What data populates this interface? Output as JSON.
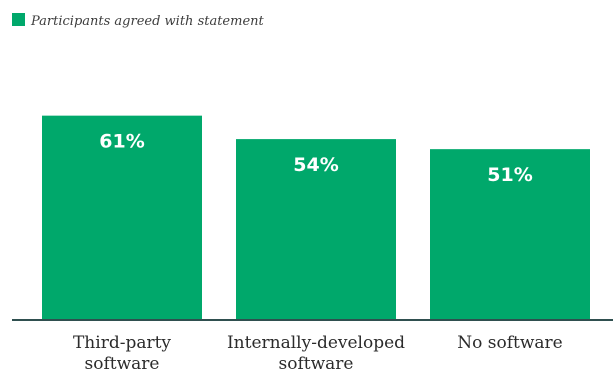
{
  "chart_data": {
    "type": "bar",
    "categories": [
      [
        "Third-party",
        "software"
      ],
      [
        "Internally-developed",
        "software"
      ],
      [
        "No software"
      ]
    ],
    "series": [
      {
        "name": "Participants agreed with statement",
        "values": [
          61,
          54,
          51
        ],
        "labels": [
          "61%",
          "54%",
          "51%"
        ]
      }
    ],
    "ylim": [
      0,
      100
    ],
    "grid": false,
    "legend_placement": "top-left",
    "colors": {
      "bar": "#00a86b",
      "axis": "#2f4f4f",
      "label": "#ffffff"
    }
  }
}
